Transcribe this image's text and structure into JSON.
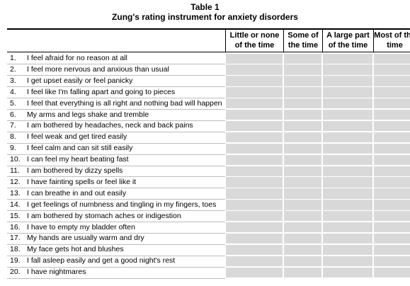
{
  "header": {
    "title": "Table 1",
    "subtitle": "Zung's rating instrument for anxiety disorders"
  },
  "table": {
    "columns": [
      "Little or none of the time",
      "Some of the time",
      "A large part of the time",
      "Most of the time"
    ],
    "rows": [
      {
        "number": "1.",
        "text": "I feel afraid for no reason at all"
      },
      {
        "number": "2.",
        "text": "I feel more nervous and anxious than usual"
      },
      {
        "number": "3.",
        "text": "I get upset easily or feel panicky"
      },
      {
        "number": "4.",
        "text": "I feel like I'm falling apart and going to pieces"
      },
      {
        "number": "5.",
        "text": "I feel that everything is all right and nothing bad will happen"
      },
      {
        "number": "6.",
        "text": "My arms and legs shake and tremble"
      },
      {
        "number": "7.",
        "text": "I am bothered by headaches, neck and back pains"
      },
      {
        "number": "8.",
        "text": "I feel weak and get tired easily"
      },
      {
        "number": "9.",
        "text": "I feel calm and can sit still easily"
      },
      {
        "number": "10.",
        "text": "I can feel my heart beating fast"
      },
      {
        "number": "11.",
        "text": "I am bothered by dizzy spells"
      },
      {
        "number": "12.",
        "text": "I have fainting spells or feel like it"
      },
      {
        "number": "13.",
        "text": "I can breathe in and out easily"
      },
      {
        "number": "14.",
        "text": "I get feelings of numbness and tingling in my fingers, toes"
      },
      {
        "number": "15.",
        "text": "I am bothered by stomach aches or indigestion"
      },
      {
        "number": "16.",
        "text": "I have to empty my bladder often"
      },
      {
        "number": "17.",
        "text": "My hands are usually warm and dry"
      },
      {
        "number": "18.",
        "text": "My face gets hot and blushes"
      },
      {
        "number": "19.",
        "text": "I fall asleep easily and get a good night's rest"
      },
      {
        "number": "20.",
        "text": "I have nightmares"
      }
    ]
  }
}
